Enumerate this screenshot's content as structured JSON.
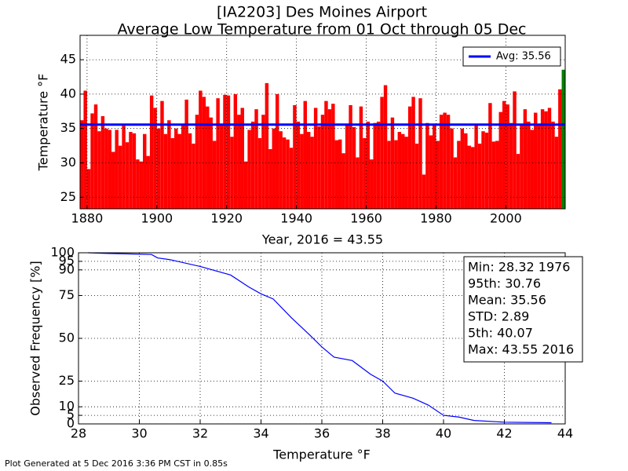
{
  "chart_data": [
    {
      "type": "bar",
      "title": [
        "[IA2203] Des Moines Airport",
        "Average Low Temperature from 01 Oct through 05 Dec"
      ],
      "ylabel": "Temperature °F",
      "xlabel": "Year, 2016 = 43.55",
      "x": [
        1878,
        1879,
        1880,
        1881,
        1882,
        1883,
        1884,
        1885,
        1886,
        1887,
        1888,
        1889,
        1890,
        1891,
        1892,
        1893,
        1894,
        1895,
        1896,
        1897,
        1898,
        1899,
        1900,
        1901,
        1902,
        1903,
        1904,
        1905,
        1906,
        1907,
        1908,
        1909,
        1910,
        1911,
        1912,
        1913,
        1914,
        1915,
        1916,
        1917,
        1918,
        1919,
        1920,
        1921,
        1922,
        1923,
        1924,
        1925,
        1926,
        1927,
        1928,
        1929,
        1930,
        1931,
        1932,
        1933,
        1934,
        1935,
        1936,
        1937,
        1938,
        1939,
        1940,
        1941,
        1942,
        1943,
        1944,
        1945,
        1946,
        1947,
        1948,
        1949,
        1950,
        1951,
        1952,
        1953,
        1954,
        1955,
        1956,
        1957,
        1958,
        1959,
        1960,
        1961,
        1962,
        1963,
        1964,
        1965,
        1966,
        1967,
        1968,
        1969,
        1970,
        1971,
        1972,
        1973,
        1974,
        1975,
        1976,
        1977,
        1978,
        1979,
        1980,
        1981,
        1982,
        1983,
        1984,
        1985,
        1986,
        1987,
        1988,
        1989,
        1990,
        1991,
        1992,
        1993,
        1994,
        1995,
        1996,
        1997,
        1998,
        1999,
        2000,
        2001,
        2002,
        2003,
        2004,
        2005,
        2006,
        2007,
        2008,
        2009,
        2010,
        2011,
        2012,
        2013,
        2014,
        2015
      ],
      "values": [
        36.2,
        40.5,
        29.1,
        37.2,
        38.5,
        34.6,
        36.8,
        35.0,
        34.8,
        31.6,
        34.8,
        32.5,
        35.4,
        33.0,
        34.5,
        34.3,
        30.5,
        30.2,
        34.2,
        31.0,
        39.8,
        38.0,
        35.0,
        39.0,
        34.2,
        36.2,
        33.6,
        35.0,
        34.2,
        35.6,
        39.2,
        34.3,
        32.8,
        37.0,
        40.5,
        39.6,
        38.2,
        36.6,
        33.2,
        39.4,
        35.5,
        39.9,
        39.8,
        33.8,
        40.0,
        37.0,
        38.0,
        30.2,
        34.8,
        36.0,
        37.8,
        33.6,
        37.0,
        41.6,
        32.0,
        35.0,
        40.0,
        34.6,
        33.7,
        33.4,
        32.2,
        38.4,
        36.0,
        34.2,
        39.0,
        34.5,
        33.8,
        38.0,
        35.3,
        37.0,
        39.0,
        37.8,
        38.6,
        33.3,
        33.4,
        31.4,
        35.6,
        38.4,
        35.2,
        30.8,
        38.2,
        33.6,
        36.0,
        30.5,
        35.8,
        36.0,
        39.6,
        41.3,
        33.2,
        36.6,
        33.3,
        34.5,
        34.2,
        33.8,
        38.2,
        39.6,
        32.8,
        39.4,
        28.3,
        35.8,
        34.0,
        35.6,
        33.2,
        37.0,
        37.3,
        37.0,
        35.0,
        30.8,
        33.2,
        35.0,
        34.3,
        32.5,
        32.3,
        35.5,
        32.8,
        34.6,
        34.4,
        38.7,
        33.1,
        33.2,
        37.4,
        39.0,
        38.5,
        35.8,
        40.4,
        31.3,
        35.5,
        37.8,
        36.0,
        34.8,
        37.3,
        35.5,
        37.8,
        37.5,
        38.0,
        36.0,
        33.8,
        40.7
      ],
      "color": "#ff0000",
      "current": {
        "x": 2016,
        "value": 43.55,
        "color": "#008000"
      },
      "average": {
        "value": 35.56,
        "label": "Avg: 35.56",
        "color": "#0000ff"
      },
      "xlim": [
        1878,
        2017
      ],
      "xticks": [
        1880,
        1900,
        1920,
        1940,
        1960,
        1980,
        2000
      ],
      "ylim": [
        23.32,
        48.55
      ],
      "yticks": [
        25,
        30,
        35,
        40,
        45
      ],
      "grid": true
    },
    {
      "type": "line",
      "xlabel": "Temperature °F",
      "ylabel": "Observed Frequency [%]",
      "x": [
        28.32,
        29,
        30,
        30.4,
        30.6,
        31,
        32,
        33,
        33.6,
        34,
        34.4,
        35,
        35.6,
        36,
        36.4,
        37,
        37.6,
        38,
        38.4,
        39,
        39.5,
        40,
        40.5,
        41,
        42,
        43.55
      ],
      "y": [
        100,
        99.6,
        99.2,
        99,
        97,
        96,
        92,
        87,
        80,
        76,
        73,
        62,
        52,
        45,
        39,
        37,
        29,
        25,
        18,
        15,
        11,
        5,
        4,
        2,
        1,
        0.7
      ],
      "color": "#0000ff",
      "xlim": [
        28,
        44
      ],
      "xticks": [
        28,
        30,
        32,
        34,
        36,
        38,
        40,
        42,
        44
      ],
      "ylim": [
        0,
        100
      ],
      "yticks": [
        0,
        5,
        10,
        25,
        50,
        75,
        90,
        95,
        100
      ],
      "grid": true,
      "stats": [
        "Min: 28.32 1976",
        "95th: 30.76",
        "Mean: 35.56",
        "STD: 2.89",
        "5th: 40.07",
        "Max: 43.55 2016"
      ]
    }
  ],
  "footer": "Plot Generated at 5 Dec 2016 3:36 PM CST in 0.85s"
}
